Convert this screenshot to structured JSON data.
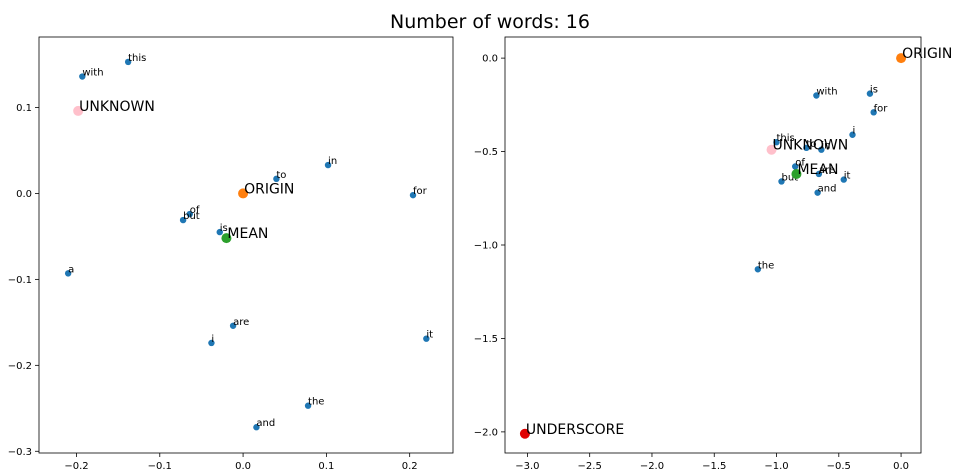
{
  "figure_title": "Number of words: 16",
  "colors": {
    "word": "#1f77b4",
    "ORIGIN": "#ff7f0e",
    "MEAN": "#2ca02c",
    "UNKNOWN": "#ffc0cb",
    "UNDERSCORE": "#e00000"
  },
  "chart_data": [
    {
      "type": "scatter",
      "xlim": [
        -0.245,
        0.252
      ],
      "ylim": [
        -0.302,
        0.182
      ],
      "xticks": [
        -0.2,
        -0.1,
        0.0,
        0.1,
        0.2
      ],
      "xtick_labels": [
        "−0.2",
        "−0.1",
        "0.0",
        "0.1",
        "0.2"
      ],
      "yticks": [
        -0.3,
        -0.2,
        -0.1,
        0.0,
        0.1
      ],
      "ytick_labels": [
        "−0.3",
        "−0.2",
        "−0.1",
        "0.0",
        "0.1"
      ],
      "grid": false,
      "points": [
        {
          "label": "this",
          "x": -0.138,
          "y": 0.153,
          "kind": "word"
        },
        {
          "label": "with",
          "x": -0.193,
          "y": 0.136,
          "kind": "word"
        },
        {
          "label": "in",
          "x": 0.102,
          "y": 0.033,
          "kind": "word"
        },
        {
          "label": "to",
          "x": 0.04,
          "y": 0.017,
          "kind": "word"
        },
        {
          "label": "for",
          "x": 0.204,
          "y": -0.002,
          "kind": "word"
        },
        {
          "label": "of",
          "x": -0.064,
          "y": -0.024,
          "kind": "word"
        },
        {
          "label": "but",
          "x": -0.072,
          "y": -0.031,
          "kind": "word"
        },
        {
          "label": "is",
          "x": -0.028,
          "y": -0.045,
          "kind": "word"
        },
        {
          "label": "a",
          "x": -0.21,
          "y": -0.093,
          "kind": "word"
        },
        {
          "label": "are",
          "x": -0.012,
          "y": -0.154,
          "kind": "word"
        },
        {
          "label": "it",
          "x": 0.22,
          "y": -0.169,
          "kind": "word"
        },
        {
          "label": "i",
          "x": -0.038,
          "y": -0.174,
          "kind": "word"
        },
        {
          "label": "the",
          "x": 0.078,
          "y": -0.247,
          "kind": "word"
        },
        {
          "label": "and",
          "x": 0.016,
          "y": -0.272,
          "kind": "word"
        },
        {
          "label": "UNKNOWN",
          "x": -0.198,
          "y": 0.096,
          "kind": "UNKNOWN"
        },
        {
          "label": "ORIGIN",
          "x": 0.0,
          "y": 0.0,
          "kind": "ORIGIN"
        },
        {
          "label": "MEAN",
          "x": -0.02,
          "y": -0.052,
          "kind": "MEAN"
        }
      ]
    },
    {
      "type": "scatter",
      "xlim": [
        -3.18,
        0.16
      ],
      "ylim": [
        -2.113,
        0.113
      ],
      "xticks": [
        -3.0,
        -2.5,
        -2.0,
        -1.5,
        -1.0,
        -0.5,
        0.0
      ],
      "xtick_labels": [
        "−3.0",
        "−2.5",
        "−2.0",
        "−1.5",
        "−1.0",
        "−0.5",
        "0.0"
      ],
      "yticks": [
        -2.0,
        -1.5,
        -1.0,
        -0.5,
        0.0
      ],
      "ytick_labels": [
        "−2.0",
        "−1.5",
        "−1.0",
        "−0.5",
        "0.0"
      ],
      "grid": false,
      "points": [
        {
          "label": "is",
          "x": -0.25,
          "y": -0.19,
          "kind": "word"
        },
        {
          "label": "with",
          "x": -0.68,
          "y": -0.2,
          "kind": "word"
        },
        {
          "label": "for",
          "x": -0.22,
          "y": -0.29,
          "kind": "word"
        },
        {
          "label": "i",
          "x": -0.39,
          "y": -0.41,
          "kind": "word"
        },
        {
          "label": "this",
          "x": -1.0,
          "y": -0.45,
          "kind": "word"
        },
        {
          "label": "to",
          "x": -0.76,
          "y": -0.48,
          "kind": "word"
        },
        {
          "label": "in",
          "x": -0.64,
          "y": -0.49,
          "kind": "word"
        },
        {
          "label": "of",
          "x": -0.85,
          "y": -0.58,
          "kind": "word"
        },
        {
          "label": "are",
          "x": -0.66,
          "y": -0.62,
          "kind": "word"
        },
        {
          "label": "it",
          "x": -0.46,
          "y": -0.65,
          "kind": "word"
        },
        {
          "label": "but",
          "x": -0.96,
          "y": -0.66,
          "kind": "word"
        },
        {
          "label": "and",
          "x": -0.67,
          "y": -0.72,
          "kind": "word"
        },
        {
          "label": "the",
          "x": -1.15,
          "y": -1.13,
          "kind": "word"
        },
        {
          "label": "UNKNOWN",
          "x": -1.04,
          "y": -0.49,
          "kind": "UNKNOWN"
        },
        {
          "label": "MEAN",
          "x": -0.84,
          "y": -0.62,
          "kind": "MEAN"
        },
        {
          "label": "ORIGIN",
          "x": 0.0,
          "y": 0.0,
          "kind": "ORIGIN"
        },
        {
          "label": "UNDERSCORE",
          "x": -3.02,
          "y": -2.01,
          "kind": "UNDERSCORE"
        }
      ]
    }
  ]
}
